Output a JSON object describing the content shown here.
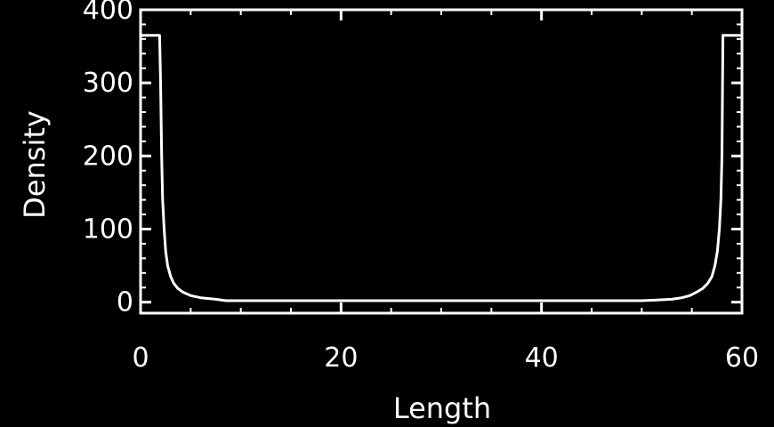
{
  "chart_data": {
    "type": "line",
    "title": "",
    "xlabel": "Length",
    "ylabel": "Density",
    "xlim": [
      0,
      60
    ],
    "ylim": [
      -15,
      400
    ],
    "xticks": [
      "0",
      "20",
      "40",
      "60"
    ],
    "yticks": [
      "0",
      "100",
      "200",
      "300",
      "400"
    ],
    "grid": false,
    "legend": "none",
    "colors": {
      "background": "#000000",
      "foreground": "#ffffff"
    },
    "series": [
      {
        "x": [
          0.1,
          1.9,
          2.0,
          2.1,
          2.2,
          2.35,
          2.5,
          2.7,
          3.0,
          3.3,
          3.7,
          4.2,
          5.0,
          6.0,
          7.5,
          8.5,
          10,
          20,
          30,
          40,
          50,
          51.5,
          53,
          54,
          54.8,
          55.5,
          56.1,
          56.6,
          57.0,
          57.3,
          57.55,
          57.75,
          57.9,
          58.0,
          58.1,
          59.9
        ],
        "y": [
          365,
          365,
          300,
          200,
          140,
          100,
          70,
          50,
          35,
          26,
          19,
          14,
          9,
          6,
          4,
          2,
          2,
          2,
          2,
          2,
          2,
          3,
          4,
          6,
          9,
          14,
          19,
          26,
          35,
          50,
          70,
          100,
          140,
          200,
          365,
          365
        ]
      }
    ]
  }
}
